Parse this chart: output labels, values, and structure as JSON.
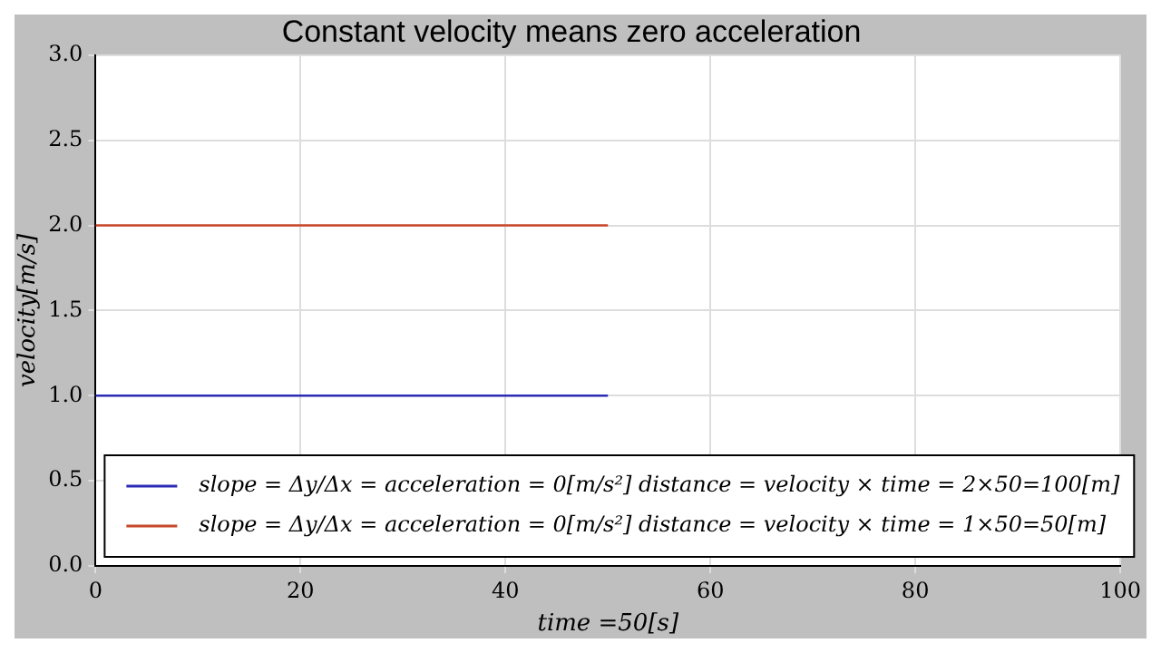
{
  "chart_data": {
    "type": "line",
    "title": "Constant velocity means zero acceleration",
    "xlabel": "time =50[s]",
    "ylabel": "velocity[m/s]",
    "x": [
      0,
      50
    ],
    "series": [
      {
        "name": "slope = Δy/Δx = acceleration = 0[m/s²] distance = velocity × time = 2×50=100[m]",
        "color": "#2b2bb5",
        "values": [
          1,
          1
        ]
      },
      {
        "name": "slope = Δy/Δx = acceleration = 0[m/s²] distance = velocity × time = 1×50=50[m]",
        "color": "#c8462a",
        "values": [
          2,
          2
        ]
      }
    ],
    "xlim": [
      0,
      100
    ],
    "xticks": [
      0,
      20,
      40,
      60,
      80,
      100
    ],
    "ylim": [
      0,
      3
    ],
    "yticks": [
      {
        "value": 0,
        "label": "0.0"
      },
      {
        "value": 0.5,
        "label": "0.5"
      },
      {
        "value": 1,
        "label": "1.0"
      },
      {
        "value": 1.5,
        "label": "1.5"
      },
      {
        "value": 2,
        "label": "2.0"
      },
      {
        "value": 2.5,
        "label": "2.5"
      },
      {
        "value": 3,
        "label": "3.0"
      }
    ],
    "grid": true,
    "legend": "bottom",
    "marker": "none",
    "line_style": "solid"
  }
}
